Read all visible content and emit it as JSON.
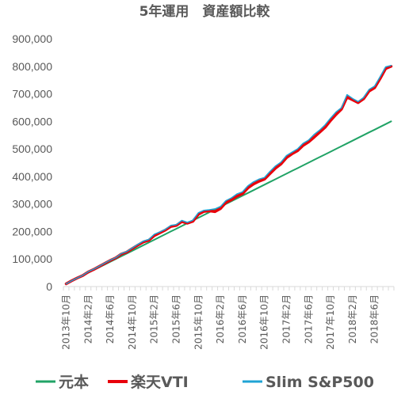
{
  "chart_data": {
    "type": "line",
    "title": "5年運用　資産額比較",
    "xlabel": "",
    "ylabel": "",
    "ylim": [
      0,
      900000
    ],
    "yticks": [
      "0",
      "100,000",
      "200,000",
      "300,000",
      "400,000",
      "500,000",
      "600,000",
      "700,000",
      "800,000",
      "900,000"
    ],
    "xticks": [
      "2013年10月",
      "2014年2月",
      "2014年6月",
      "2014年10月",
      "2015年2月",
      "2015年6月",
      "2015年10月",
      "2016年2月",
      "2016年6月",
      "2016年10月",
      "2017年2月",
      "2017年6月",
      "2017年10月",
      "2018年2月",
      "2018年6月"
    ],
    "grid": false,
    "legend_position": "bottom",
    "x": [
      "2013-10",
      "2013-11",
      "2013-12",
      "2014-01",
      "2014-02",
      "2014-03",
      "2014-04",
      "2014-05",
      "2014-06",
      "2014-07",
      "2014-08",
      "2014-09",
      "2014-10",
      "2014-11",
      "2014-12",
      "2015-01",
      "2015-02",
      "2015-03",
      "2015-04",
      "2015-05",
      "2015-06",
      "2015-07",
      "2015-08",
      "2015-09",
      "2015-10",
      "2015-11",
      "2015-12",
      "2016-01",
      "2016-02",
      "2016-03",
      "2016-04",
      "2016-05",
      "2016-06",
      "2016-07",
      "2016-08",
      "2016-09",
      "2016-10",
      "2016-11",
      "2016-12",
      "2017-01",
      "2017-02",
      "2017-03",
      "2017-04",
      "2017-05",
      "2017-06",
      "2017-07",
      "2017-08",
      "2017-09",
      "2017-10",
      "2017-11",
      "2017-12",
      "2018-01",
      "2018-02",
      "2018-03",
      "2018-04",
      "2018-05",
      "2018-06",
      "2018-07",
      "2018-08",
      "2018-09"
    ],
    "series": [
      {
        "name": "元本",
        "color": "#21a366",
        "values": [
          10000,
          20000,
          30000,
          40000,
          50000,
          60000,
          70000,
          80000,
          90000,
          100000,
          110000,
          120000,
          130000,
          140000,
          150000,
          160000,
          170000,
          180000,
          190000,
          200000,
          210000,
          220000,
          230000,
          240000,
          250000,
          260000,
          270000,
          280000,
          290000,
          300000,
          310000,
          320000,
          330000,
          340000,
          350000,
          360000,
          370000,
          380000,
          390000,
          400000,
          410000,
          420000,
          430000,
          440000,
          450000,
          460000,
          470000,
          480000,
          490000,
          500000,
          510000,
          520000,
          530000,
          540000,
          550000,
          560000,
          570000,
          580000,
          590000,
          600000
        ]
      },
      {
        "name": "楽天VTI",
        "color": "#e8000b",
        "values": [
          10000,
          21000,
          31000,
          40000,
          53000,
          62000,
          73000,
          84000,
          95000,
          104000,
          118000,
          125000,
          138000,
          150000,
          162000,
          168000,
          185000,
          195000,
          205000,
          218000,
          222000,
          236000,
          230000,
          237000,
          262000,
          273000,
          275000,
          272000,
          283000,
          305000,
          315000,
          328000,
          337000,
          358000,
          372000,
          382000,
          390000,
          410000,
          430000,
          445000,
          468000,
          482000,
          493000,
          512000,
          525000,
          542000,
          560000,
          578000,
          603000,
          625000,
          645000,
          688000,
          678000,
          668000,
          682000,
          710000,
          722000,
          755000,
          792000,
          800000
        ]
      },
      {
        "name": "Slim S&P500",
        "color": "#1fa3d4",
        "values": [
          10000,
          21000,
          31000,
          40500,
          54000,
          63000,
          74000,
          85000,
          96000,
          105000,
          120000,
          127000,
          140000,
          153000,
          165000,
          171000,
          190000,
          198000,
          208000,
          222000,
          225000,
          240000,
          233000,
          241000,
          268000,
          277000,
          279000,
          282000,
          290000,
          312000,
          322000,
          336000,
          344000,
          366000,
          380000,
          390000,
          396000,
          418000,
          438000,
          452000,
          476000,
          488000,
          500000,
          520000,
          532000,
          552000,
          568000,
          587000,
          612000,
          634000,
          650000,
          697000,
          683000,
          672000,
          687000,
          716000,
          728000,
          762000,
          798000,
          803000
        ]
      }
    ]
  }
}
